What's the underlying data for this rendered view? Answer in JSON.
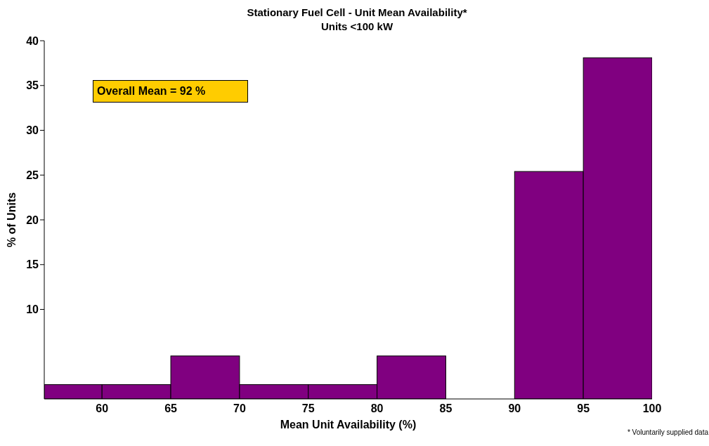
{
  "chart_data": {
    "type": "histogram",
    "title": "Stationary Fuel Cell - Unit Mean Availability*",
    "subtitle": "Units <100 kW",
    "xlabel": "Mean Unit Availability (%)",
    "ylabel": "% of Units",
    "bins": [
      55.8,
      60,
      65,
      70,
      75,
      80,
      85,
      90,
      95,
      100
    ],
    "values": [
      1.6,
      1.6,
      4.8,
      1.6,
      1.6,
      4.8,
      0,
      25.4,
      38.1
    ],
    "color": "#800080",
    "xlim": [
      55.8,
      100
    ],
    "xticks": [
      60,
      65,
      70,
      75,
      80,
      85,
      90,
      95,
      100
    ],
    "ylim": [
      0,
      40
    ],
    "yticks": [
      10,
      15,
      20,
      25,
      30,
      35,
      40
    ],
    "grid": false,
    "annotations": [
      "Overall Mean = 92 %",
      "* Voluntarily supplied data"
    ]
  }
}
